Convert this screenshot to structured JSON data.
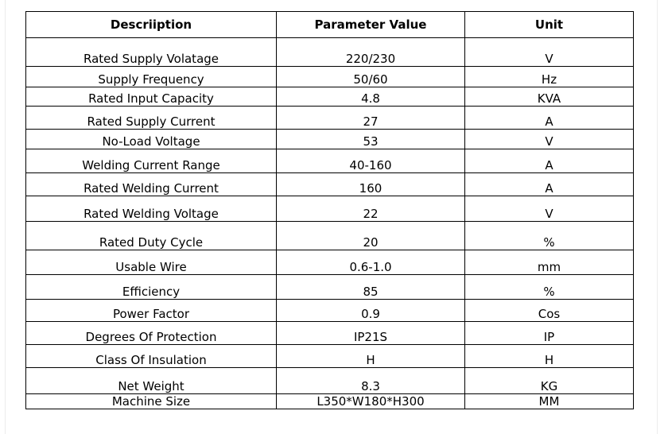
{
  "table": {
    "headers": [
      "Descriiption",
      "Parameter Value",
      "Unit"
    ],
    "rows": [
      {
        "description": "Rated Supply Volatage",
        "value": "220/230",
        "unit": "V"
      },
      {
        "description": "Supply Frequency",
        "value": "50/60",
        "unit": "Hz"
      },
      {
        "description": "Rated Input Capacity",
        "value": "4.8",
        "unit": "KVA"
      },
      {
        "description": "Rated Supply Current",
        "value": "27",
        "unit": "A"
      },
      {
        "description": "No-Load Voltage",
        "value": "53",
        "unit": "V"
      },
      {
        "description": "Welding Current Range",
        "value": "40-160",
        "unit": "A"
      },
      {
        "description": "Rated Welding Current",
        "value": "160",
        "unit": "A"
      },
      {
        "description": "Rated Welding Voltage",
        "value": "22",
        "unit": "V"
      },
      {
        "description": "Rated Duty Cycle",
        "value": "20",
        "unit": "%"
      },
      {
        "description": "Usable Wire",
        "value": "0.6-1.0",
        "unit": "mm"
      },
      {
        "description": "Efficiency",
        "value": "85",
        "unit": "%"
      },
      {
        "description": "Power Factor",
        "value": "0.9",
        "unit": "Cos"
      },
      {
        "description": "Degrees Of Protection",
        "value": "IP21S",
        "unit": "IP"
      },
      {
        "description": "Class Of Insulation",
        "value": "H",
        "unit": "H"
      },
      {
        "description": "Net Weight",
        "value": "8.3",
        "unit": "KG"
      },
      {
        "description": "Machine Size",
        "value": "L350*W180*H300",
        "unit": "MM"
      }
    ]
  }
}
